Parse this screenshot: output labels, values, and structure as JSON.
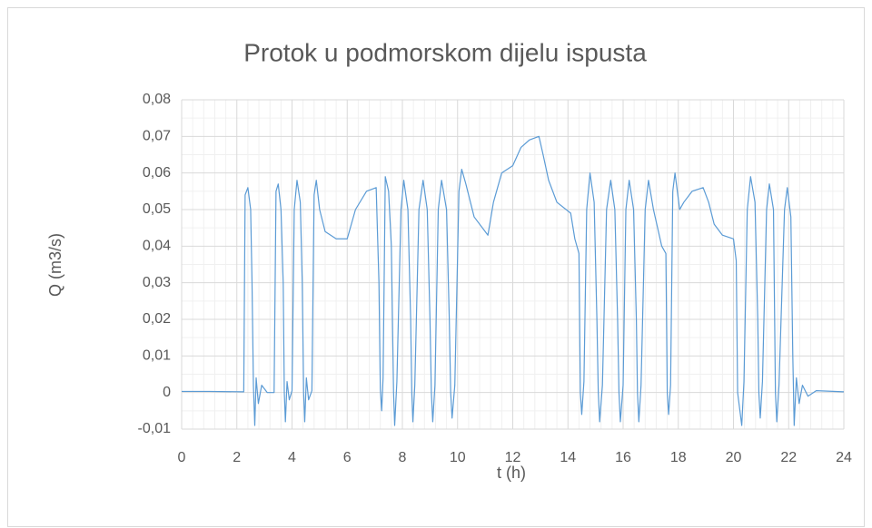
{
  "chart_data": {
    "type": "line",
    "title": "Protok u podmorskom dijelu ispusta",
    "x_label": "t  (h)",
    "y_label": "Q  (m3/s)",
    "x": [
      0,
      1,
      2.25,
      2.3,
      2.4,
      2.5,
      2.55,
      2.6,
      2.65,
      2.7,
      2.78,
      2.9,
      3.1,
      3.35,
      3.42,
      3.5,
      3.6,
      3.68,
      3.72,
      3.76,
      3.82,
      3.9,
      4.0,
      4.08,
      4.18,
      4.3,
      4.37,
      4.42,
      4.46,
      4.52,
      4.6,
      4.72,
      4.8,
      4.88,
      5.0,
      5.2,
      5.6,
      6.0,
      6.3,
      6.7,
      7.05,
      7.15,
      7.2,
      7.25,
      7.3,
      7.38,
      7.5,
      7.6,
      7.68,
      7.72,
      7.8,
      7.95,
      8.05,
      8.2,
      8.3,
      8.34,
      8.38,
      8.45,
      8.6,
      8.75,
      8.9,
      9.0,
      9.05,
      9.1,
      9.18,
      9.3,
      9.42,
      9.6,
      9.7,
      9.75,
      9.8,
      9.9,
      10.05,
      10.15,
      10.3,
      10.6,
      11.1,
      11.3,
      11.6,
      12.0,
      12.3,
      12.6,
      12.95,
      13.1,
      13.3,
      13.6,
      14.1,
      14.25,
      14.4,
      14.45,
      14.5,
      14.58,
      14.68,
      14.8,
      14.95,
      15.05,
      15.1,
      15.15,
      15.25,
      15.4,
      15.55,
      15.7,
      15.8,
      15.85,
      15.9,
      16.0,
      16.1,
      16.22,
      16.38,
      16.48,
      16.52,
      16.57,
      16.65,
      16.8,
      16.92,
      17.1,
      17.4,
      17.55,
      17.6,
      17.65,
      17.72,
      17.8,
      17.88,
      18.05,
      18.2,
      18.5,
      18.9,
      19.1,
      19.3,
      19.6,
      20.0,
      20.1,
      20.15,
      20.3,
      20.38,
      20.5,
      20.62,
      20.78,
      20.88,
      20.92,
      20.97,
      21.05,
      21.2,
      21.3,
      21.45,
      21.52,
      21.57,
      21.65,
      21.85,
      21.95,
      22.08,
      22.15,
      22.2,
      22.28,
      22.38,
      22.5,
      22.7,
      23.0,
      24.0
    ],
    "series": [
      {
        "name": "Q",
        "color": "#5b9bd5",
        "values": [
          0.0003,
          0.0003,
          0.0002,
          0.054,
          0.056,
          0.05,
          0.03,
          0.002,
          -0.009,
          0.004,
          -0.003,
          0.002,
          0,
          0,
          0.055,
          0.057,
          0.05,
          0.03,
          0,
          -0.008,
          0.003,
          -0.002,
          0.0005,
          0.05,
          0.058,
          0.052,
          0.03,
          0,
          -0.008,
          0.004,
          -0.002,
          0.0005,
          0.054,
          0.058,
          0.05,
          0.044,
          0.042,
          0.042,
          0.05,
          0.055,
          0.056,
          0.03,
          0.001,
          -0.005,
          0.004,
          0.059,
          0.055,
          0.04,
          0,
          -0.009,
          0.003,
          0.05,
          0.058,
          0.05,
          0.02,
          0,
          -0.008,
          0.002,
          0.05,
          0.058,
          0.05,
          0.02,
          0,
          -0.008,
          0.002,
          0.05,
          0.058,
          0.05,
          0.02,
          0,
          -0.007,
          0.002,
          0.055,
          0.061,
          0.057,
          0.048,
          0.043,
          0.052,
          0.06,
          0.062,
          0.067,
          0.069,
          0.07,
          0.065,
          0.058,
          0.052,
          0.049,
          0.042,
          0.038,
          0,
          -0.006,
          0.003,
          0.05,
          0.06,
          0.052,
          0.02,
          0,
          -0.008,
          0.002,
          0.05,
          0.058,
          0.05,
          0.02,
          0,
          -0.008,
          0.002,
          0.05,
          0.058,
          0.05,
          0.02,
          0,
          -0.008,
          0.002,
          0.05,
          0.058,
          0.05,
          0.04,
          0.038,
          0,
          -0.006,
          0.002,
          0.055,
          0.06,
          0.05,
          0.052,
          0.055,
          0.056,
          0.052,
          0.046,
          0.043,
          0.042,
          0.036,
          0,
          -0.009,
          0.003,
          0.05,
          0.059,
          0.052,
          0.02,
          0,
          -0.007,
          0.003,
          0.05,
          0.057,
          0.05,
          0,
          -0.008,
          0.002,
          0.05,
          0.056,
          0.048,
          0.01,
          -0.009,
          0.004,
          -0.003,
          0.002,
          -0.001,
          0.0005,
          0.0002
        ]
      }
    ],
    "xlim": [
      0,
      24
    ],
    "xticks": [
      0,
      2,
      4,
      6,
      8,
      10,
      12,
      14,
      16,
      18,
      20,
      22,
      24
    ],
    "ylim": [
      -0.01,
      0.08
    ],
    "yticks": [
      {
        "value": -0.01,
        "label": "-0,01"
      },
      0,
      {
        "value": 0.01,
        "label": "0,01"
      },
      {
        "value": 0.02,
        "label": "0,02"
      },
      {
        "value": 0.03,
        "label": "0,03"
      },
      {
        "value": 0.04,
        "label": "0,04"
      },
      {
        "value": 0.05,
        "label": "0,05"
      },
      {
        "value": 0.06,
        "label": "0,06"
      },
      {
        "value": 0.07,
        "label": "0,07"
      },
      {
        "value": 0.08,
        "label": "0,08"
      }
    ],
    "grid": true,
    "minor_grid": true
  }
}
